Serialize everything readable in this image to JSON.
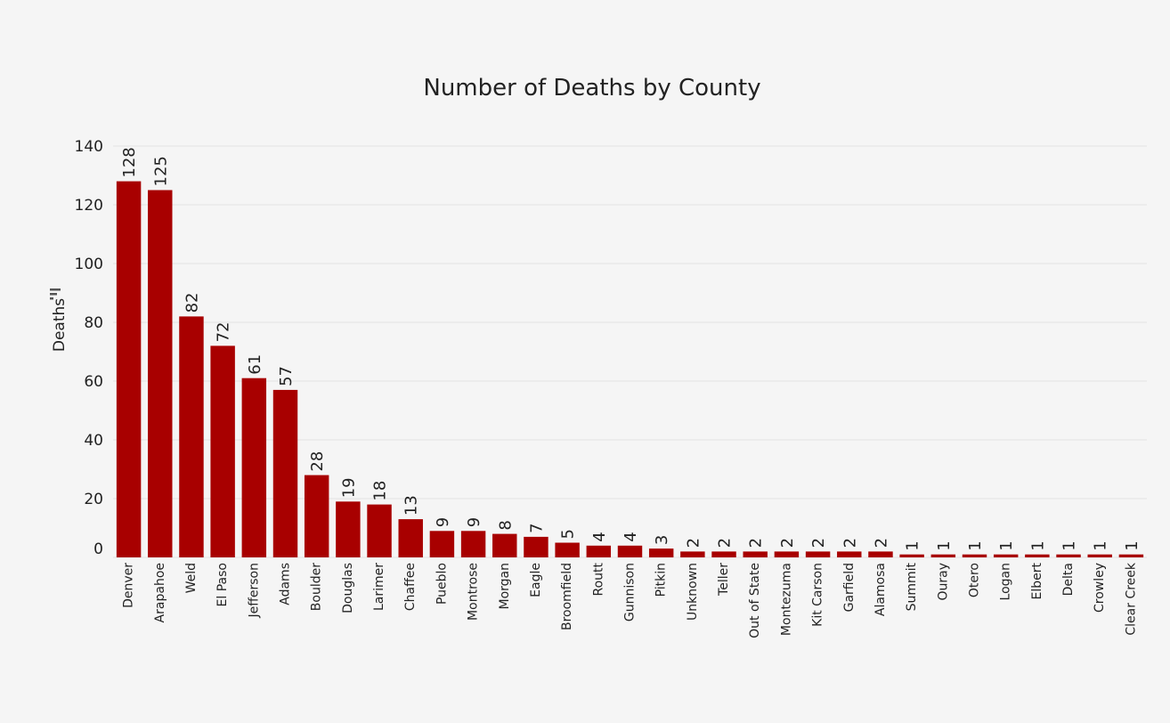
{
  "chart_data": {
    "type": "bar",
    "title": "Number of Deaths by County",
    "xlabel": "",
    "ylabel": "Deaths",
    "ylim": [
      0,
      140
    ],
    "yticks": [
      0,
      20,
      40,
      60,
      80,
      100,
      120,
      140
    ],
    "grid": true,
    "bar_color": "#a80000",
    "sort_icon": "sort-descending-icon",
    "categories": [
      "Denver",
      "Arapahoe",
      "Weld",
      "El Paso",
      "Jefferson",
      "Adams",
      "Boulder",
      "Douglas",
      "Larimer",
      "Chaffee",
      "Pueblo",
      "Montrose",
      "Morgan",
      "Eagle",
      "Broomfield",
      "Routt",
      "Gunnison",
      "Pitkin",
      "Unknown",
      "Teller",
      "Out of State",
      "Montezuma",
      "Kit Carson",
      "Garfield",
      "Alamosa",
      "Summit",
      "Ouray",
      "Otero",
      "Logan",
      "Elbert",
      "Delta",
      "Crowley",
      "Clear Creek"
    ],
    "values": [
      128,
      125,
      82,
      72,
      61,
      57,
      28,
      19,
      18,
      13,
      9,
      9,
      8,
      7,
      5,
      4,
      4,
      3,
      2,
      2,
      2,
      2,
      2,
      2,
      2,
      1,
      1,
      1,
      1,
      1,
      1,
      1,
      1
    ]
  }
}
